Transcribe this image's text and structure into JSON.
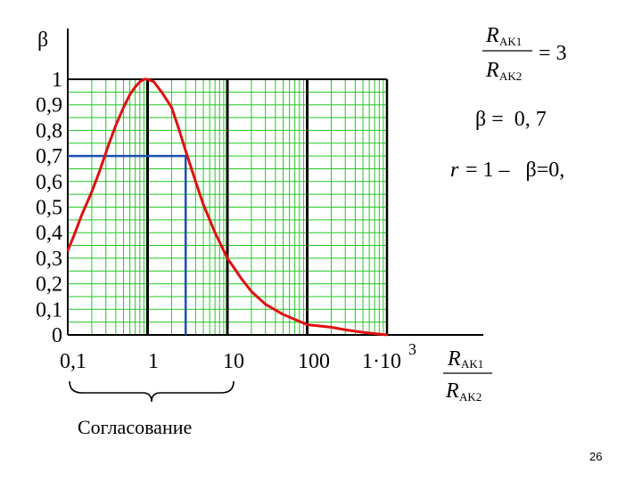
{
  "chart_data": {
    "type": "line",
    "title": "",
    "ylabel": "β",
    "xscale": "log",
    "xlim": [
      0.1,
      1000
    ],
    "ylim": [
      0,
      1
    ],
    "grid": true,
    "x_tick_labels": [
      "0,1",
      "1",
      "10",
      "100",
      "1·10"
    ],
    "x_tick_values": [
      0.1,
      1,
      10,
      100,
      1000
    ],
    "x_tick_last_exponent": "3",
    "y_tick_labels": [
      "0",
      "0,1",
      "0,2",
      "0,3",
      "0,4",
      "0,5",
      "0,6",
      "0,7",
      "0,8",
      "0,9",
      "1"
    ],
    "y_tick_values": [
      0,
      0.1,
      0.2,
      0.3,
      0.4,
      0.5,
      0.6,
      0.7,
      0.8,
      0.9,
      1
    ],
    "series": [
      {
        "name": "β",
        "color": "#e01010",
        "x": [
          0.1,
          0.12,
          0.15,
          0.2,
          0.25,
          0.33,
          0.4,
          0.5,
          0.6,
          0.7,
          0.8,
          0.9,
          1.0,
          1.2,
          1.5,
          2,
          2.5,
          3,
          4,
          5,
          7,
          10,
          15,
          20,
          30,
          50,
          100,
          200,
          300,
          500,
          1000
        ],
        "values": [
          0.33,
          0.39,
          0.47,
          0.56,
          0.64,
          0.75,
          0.82,
          0.89,
          0.94,
          0.97,
          0.99,
          1.0,
          1.0,
          0.99,
          0.95,
          0.89,
          0.8,
          0.72,
          0.6,
          0.51,
          0.4,
          0.3,
          0.22,
          0.17,
          0.12,
          0.08,
          0.04,
          0.03,
          0.02,
          0.01,
          0.0
        ]
      }
    ],
    "marker": {
      "x_left": 0.1,
      "x_right": 3,
      "y": 0.7,
      "color": "#1a4fb0"
    },
    "xlabel": {
      "numerator_var": "R",
      "numerator_sub": "AK1",
      "denominator_var": "R",
      "denominator_sub": "AK2"
    },
    "annotations": {
      "ratio": {
        "numerator_var": "R",
        "numerator_sub": "AK1",
        "denominator_var": "R",
        "denominator_sub": "AK2",
        "value": "= 3"
      },
      "beta_line": "β =  0, 7",
      "r_line_var": "r",
      "r_line_rest": " = 1 –   β=0,",
      "brace_label": "Согласование"
    },
    "colors": {
      "grid_minor": "#22c722",
      "grid_major": "#000000",
      "axis": "#000000"
    }
  },
  "slide_number": "26"
}
